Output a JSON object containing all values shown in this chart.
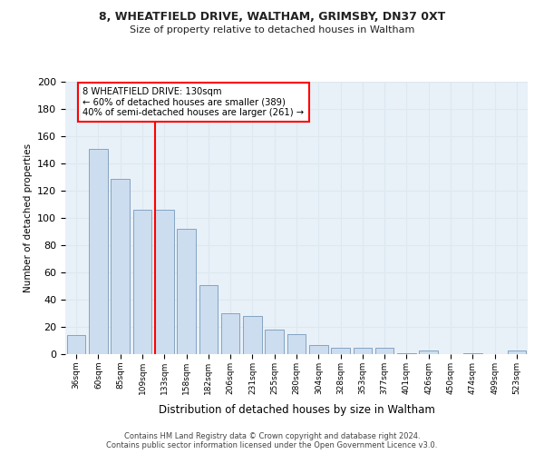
{
  "title1": "8, WHEATFIELD DRIVE, WALTHAM, GRIMSBY, DN37 0XT",
  "title2": "Size of property relative to detached houses in Waltham",
  "xlabel": "Distribution of detached houses by size in Waltham",
  "ylabel": "Number of detached properties",
  "bar_labels": [
    "36sqm",
    "60sqm",
    "85sqm",
    "109sqm",
    "133sqm",
    "158sqm",
    "182sqm",
    "206sqm",
    "231sqm",
    "255sqm",
    "280sqm",
    "304sqm",
    "328sqm",
    "353sqm",
    "377sqm",
    "401sqm",
    "426sqm",
    "450sqm",
    "474sqm",
    "499sqm",
    "523sqm"
  ],
  "bar_values": [
    14,
    151,
    129,
    106,
    106,
    92,
    51,
    30,
    28,
    18,
    15,
    7,
    5,
    5,
    5,
    1,
    3,
    0,
    1,
    0,
    3
  ],
  "bar_color": "#ccddef",
  "bar_edge_color": "#7799bb",
  "grid_color": "#dde8f0",
  "vline_color": "red",
  "annotation_box_text": "8 WHEATFIELD DRIVE: 130sqm\n← 60% of detached houses are smaller (389)\n40% of semi-detached houses are larger (261) →",
  "footer_line1": "Contains HM Land Registry data © Crown copyright and database right 2024.",
  "footer_line2": "Contains public sector information licensed under the Open Government Licence v3.0.",
  "ylim": [
    0,
    200
  ],
  "yticks": [
    0,
    20,
    40,
    60,
    80,
    100,
    120,
    140,
    160,
    180,
    200
  ],
  "bg_color": "#ffffff",
  "plot_bg_color": "#e8f0f8"
}
